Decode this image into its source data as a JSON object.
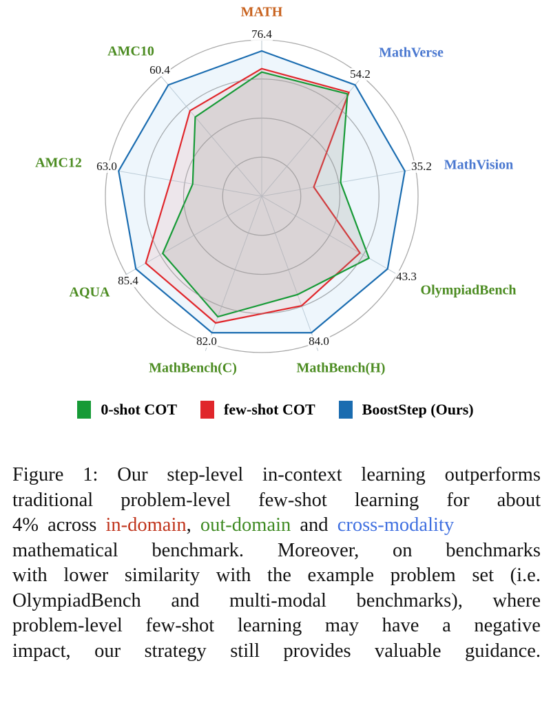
{
  "chart_data": {
    "type": "radar",
    "title": "",
    "axes": [
      {
        "name": "MATH",
        "max_label": "76.4",
        "max": 76.4,
        "group": "in-domain"
      },
      {
        "name": "MathVerse",
        "max_label": "54.2",
        "max": 54.2,
        "group": "cross-modality"
      },
      {
        "name": "MathVision",
        "max_label": "35.2",
        "max": 35.2,
        "group": "cross-modality"
      },
      {
        "name": "OlympiadBench",
        "max_label": "43.3",
        "max": 43.3,
        "group": "out-domain"
      },
      {
        "name": "MathBench(H)",
        "max_label": "84.0",
        "max": 84.0,
        "group": "out-domain"
      },
      {
        "name": "MathBench(C)",
        "max_label": "82.0",
        "max": 82.0,
        "group": "out-domain"
      },
      {
        "name": "AQUA",
        "max_label": "85.4",
        "max": 85.4,
        "group": "out-domain"
      },
      {
        "name": "AMC12",
        "max_label": "63.0",
        "max": 63.0,
        "group": "out-domain"
      },
      {
        "name": "AMC10",
        "max_label": "60.4",
        "max": 60.4,
        "group": "out-domain"
      }
    ],
    "group_colors": {
      "in-domain": "#c8621e",
      "out-domain": "#4c8c22",
      "cross-modality": "#4a78d0"
    },
    "series": [
      {
        "name": "0-shot COT",
        "color": "#169a36",
        "fill": "rgba(150,150,140,0.22)",
        "values": [
          65.3,
          49.8,
          19.4,
          36.9,
          60.5,
          72.4,
          67.2,
          30.4,
          43.0
        ]
      },
      {
        "name": "few-shot COT",
        "color": "#e0262b",
        "fill": "rgba(235,160,160,0.18)",
        "values": [
          67.1,
          50.6,
          12.8,
          33.8,
          67.4,
          76.1,
          78.7,
          40.1,
          46.4
        ]
      },
      {
        "name": "BoostStep (Ours)",
        "color": "#1a6cb0",
        "fill": "rgba(200,225,245,0.3)",
        "values": [
          76.4,
          54.2,
          35.2,
          43.3,
          84.0,
          82.0,
          85.4,
          63.0,
          60.4
        ]
      }
    ],
    "grid": true,
    "legend_position": "bottom"
  },
  "caption": {
    "lines": [
      [
        "Figure 1: Our step-level in-context learning outperforms"
      ],
      [
        "traditional problem-level few-shot learning for about"
      ],
      [
        "4% across ",
        "in-domain",
        ", ",
        "out-domain",
        " and ",
        "cross-modality"
      ],
      [
        "mathematical benchmark.  Moreover, on benchmarks"
      ],
      [
        "with lower similarity with the example problem set (i.e."
      ],
      [
        "OlympiadBench and multi-modal benchmarks), where"
      ],
      [
        "problem-level few-shot learning may have a negative"
      ],
      [
        "impact, our strategy still provides valuable guidance."
      ]
    ],
    "colors": {
      "in-domain": "#c0341c",
      "out-domain": "#3e8a22",
      "cross-modality": "#3f6fe0"
    }
  }
}
